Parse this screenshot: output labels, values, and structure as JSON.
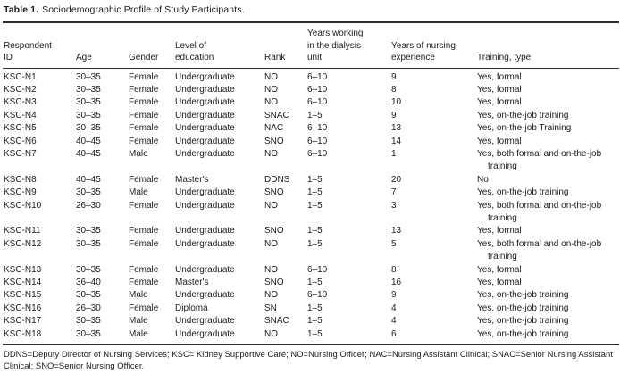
{
  "colors": {
    "text": "#1b1b1b",
    "rule": "#2e2e2e",
    "background": "#ffffff"
  },
  "table": {
    "title_label": "Table 1.",
    "title_text": "Sociodemographic Profile of Study Participants.",
    "columns": [
      "Respondent\nID",
      "Age",
      "Gender",
      "Level of\neducation",
      "Rank",
      "Years working\nin the dialysis\nunit",
      "Years of nursing\nexperience",
      "Training, type"
    ],
    "rows": [
      [
        "KSC-N1",
        "30–35",
        "Female",
        "Undergraduate",
        "NO",
        "6–10",
        "9",
        "Yes, formal"
      ],
      [
        "KSC-N2",
        "30–35",
        "Female",
        "Undergraduate",
        "NO",
        "6–10",
        "8",
        "Yes, formal"
      ],
      [
        "KSC-N3",
        "30–35",
        "Female",
        "Undergraduate",
        "NO",
        "6–10",
        "10",
        "Yes, formal"
      ],
      [
        "KSC-N4",
        "30–35",
        "Female",
        "Undergraduate",
        "SNAC",
        "1–5",
        "9",
        "Yes, on-the-job training"
      ],
      [
        "KSC-N5",
        "30–35",
        "Female",
        "Undergraduate",
        "NAC",
        "6–10",
        "13",
        "Yes, on-the-job Training"
      ],
      [
        "KSC-N6",
        "40–45",
        "Female",
        "Undergraduate",
        "SNO",
        "6–10",
        "14",
        "Yes, formal"
      ],
      [
        "KSC-N7",
        "40–45",
        "Male",
        "Undergraduate",
        "NO",
        "6–10",
        "1",
        "Yes, both formal and on-the-job training"
      ],
      [
        "KSC-N8",
        "40–45",
        "Female",
        "Master's",
        "DDNS",
        "1–5",
        "20",
        "No"
      ],
      [
        "KSC-N9",
        "30–35",
        "Male",
        "Undergraduate",
        "SNO",
        "1–5",
        "7",
        "Yes, on-the-job training"
      ],
      [
        "KSC-N10",
        "26–30",
        "Female",
        "Undergraduate",
        "NO",
        "1–5",
        "3",
        "Yes, both formal and on-the-job training"
      ],
      [
        "KSC-N11",
        "30–35",
        "Female",
        "Undergraduate",
        "SNO",
        "1–5",
        "13",
        "Yes, formal"
      ],
      [
        "KSC-N12",
        "30–35",
        "Female",
        "Undergraduate",
        "NO",
        "1–5",
        "5",
        "Yes, both formal and on-the-job training"
      ],
      [
        "KSC-N13",
        "30–35",
        "Female",
        "Undergraduate",
        "NO",
        "6–10",
        "8",
        "Yes, formal"
      ],
      [
        "KSC-N14",
        "36–40",
        "Female",
        "Master's",
        "SNO",
        "1–5",
        "16",
        "Yes, formal"
      ],
      [
        "KSC-N15",
        "30–35",
        "Male",
        "Undergraduate",
        "NO",
        "6–10",
        "9",
        "Yes, on-the-job training"
      ],
      [
        "KSC-N16",
        "26–30",
        "Female",
        "Diploma",
        "SN",
        "1–5",
        "4",
        "Yes, on-the-job training"
      ],
      [
        "KSC-N17",
        "30–35",
        "Male",
        "Undergraduate",
        "SNAC",
        "1–5",
        "4",
        "Yes, on-the-job training"
      ],
      [
        "KSC-N18",
        "30–35",
        "Male",
        "Undergraduate",
        "NO",
        "1–5",
        "6",
        "Yes, on-the-job training"
      ]
    ],
    "footnote": "DDNS=Deputy Director of Nursing Services; KSC= Kidney Supportive Care; NO=Nursing Officer; NAC=Nursing Assistant Clinical; SNAC=Senior Nursing Assistant Clinical; SNO=Senior Nursing Officer."
  }
}
